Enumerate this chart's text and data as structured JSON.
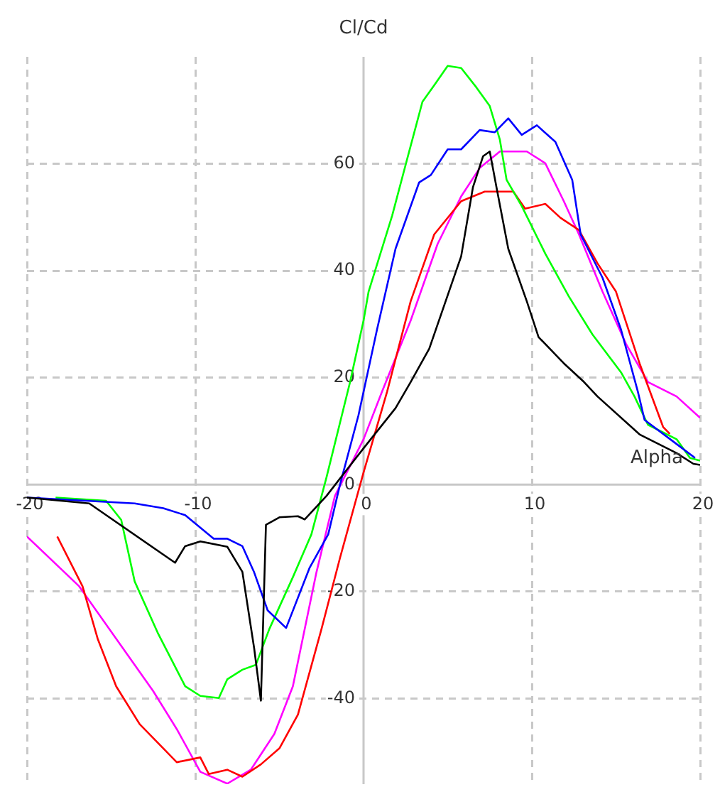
{
  "chart_data": {
    "type": "line",
    "xlabel": "Alpha",
    "ylabel": "Cl/Cd",
    "xlim": [
      -20,
      20
    ],
    "ylim": [
      -56,
      80
    ],
    "xticks": [
      -20,
      -10,
      0,
      10,
      20
    ],
    "yticks": [
      -40,
      -20,
      0,
      20,
      40,
      60
    ],
    "grid": true,
    "legend": false,
    "marker": "none",
    "line_style": "solid",
    "series": [
      {
        "color": "#000000",
        "x": [
          -20,
          -16.3,
          -11.2,
          -10.6,
          -9.7,
          -8.1,
          -7.2,
          -6.5,
          -6.1,
          -5.8,
          -5,
          -3.9,
          -3.5,
          -2.2,
          0,
          1.9,
          2.8,
          3.9,
          5.8,
          6.5,
          7.1,
          7.5,
          7.9,
          8.6,
          9.7,
          10.4,
          11.9,
          13.1,
          13.9,
          16.4,
          18.6,
          19.6,
          20
        ],
        "values": [
          -2.4,
          -3.5,
          -14.6,
          -11.5,
          -10.6,
          -11.6,
          -16.3,
          -30.6,
          -40.4,
          -7.5,
          -6.1,
          -5.9,
          -6.5,
          -2.1,
          6.8,
          14.3,
          19.2,
          25.4,
          42.7,
          55.6,
          61.4,
          62.3,
          55.6,
          44.1,
          34.3,
          27.6,
          22.7,
          19.2,
          16.5,
          9.4,
          5.9,
          3.9,
          3.7
        ]
      },
      {
        "color": "#0000ff",
        "x": [
          -20,
          -13.6,
          -11.9,
          -10.6,
          -8.9,
          -8.1,
          -7.2,
          -6.5,
          -5.7,
          -4.6,
          -3.2,
          -2.1,
          -1.4,
          -0.3,
          0.8,
          1.9,
          3.3,
          4,
          5,
          5.8,
          6.9,
          7.8,
          8.6,
          9.4,
          10.3,
          11.4,
          12.4,
          12.9,
          14.2,
          15.3,
          16.3,
          16.7,
          18.6,
          19.7
        ],
        "values": [
          -2.4,
          -3.5,
          -4.4,
          -5.7,
          -10.1,
          -10.1,
          -11.5,
          -16.4,
          -23.5,
          -26.8,
          -15.5,
          -9.3,
          0,
          13,
          29,
          44.1,
          56.5,
          57.9,
          62.7,
          62.7,
          66.3,
          65.9,
          68.5,
          65.4,
          67.2,
          64.1,
          57,
          46.8,
          38.7,
          29,
          17.4,
          12.1,
          7.6,
          5
        ]
      },
      {
        "color": "#00ff00",
        "x": [
          -18.3,
          -15.3,
          -14.4,
          -13.6,
          -12.2,
          -10.6,
          -9.7,
          -8.6,
          -8.1,
          -7.2,
          -6.4,
          -5.6,
          -4.2,
          -3.1,
          -2.2,
          -0.8,
          0,
          0.3,
          1.7,
          2.6,
          3.5,
          4.2,
          5,
          5.8,
          6.7,
          7.5,
          8.1,
          8.5,
          9.4,
          10.8,
          12.2,
          13.6,
          15.3,
          16.1,
          16.9,
          18.6,
          19.4,
          20
        ],
        "values": [
          -2.4,
          -3,
          -6.6,
          -18.1,
          -27.9,
          -37.7,
          -39.5,
          -39.9,
          -36.4,
          -34.6,
          -33.7,
          -27,
          -17.3,
          -9.3,
          1.4,
          19.2,
          30.7,
          36.1,
          50.3,
          61,
          71.6,
          74.7,
          78.3,
          77.9,
          74.3,
          70.8,
          64.5,
          57,
          52.1,
          43.2,
          35.2,
          28.1,
          21,
          16.5,
          11.2,
          8.5,
          5,
          4.5
        ]
      },
      {
        "color": "#ff0000",
        "x": [
          -18.2,
          -16.7,
          -15.8,
          -14.7,
          -13.3,
          -11.9,
          -11.1,
          -9.7,
          -9.2,
          -8.1,
          -7.2,
          -6.1,
          -5,
          -3.9,
          -2.5,
          -1.4,
          0,
          1.4,
          2.8,
          4.2,
          5.8,
          7.2,
          8.9,
          9.6,
          10.8,
          11.7,
          12.8,
          13.9,
          15,
          16.4,
          17.8,
          18.2
        ],
        "values": [
          -9.7,
          -19,
          -28.8,
          -37.7,
          -44.8,
          -49.3,
          -51.9,
          -51,
          -54.1,
          -53.3,
          -54.6,
          -52.3,
          -49.3,
          -43,
          -27,
          -13.7,
          2.3,
          17.4,
          34.3,
          46.8,
          53,
          54.8,
          54.8,
          51.6,
          52.5,
          49.9,
          47.6,
          41.4,
          36.1,
          22.7,
          10.8,
          9.5
        ]
      },
      {
        "color": "#ff00ff",
        "x": [
          -20,
          -16.9,
          -14.7,
          -12.5,
          -11.1,
          -9.7,
          -8.1,
          -6.7,
          -5.3,
          -4.2,
          -2.8,
          -1.7,
          0,
          1.1,
          2.8,
          4.4,
          5.8,
          6.9,
          8.1,
          9.7,
          10.8,
          11.9,
          12.8,
          14.2,
          15.6,
          16.9,
          18.6,
          20
        ],
        "values": [
          -9.7,
          -19,
          -28.8,
          -38.6,
          -45.7,
          -53.7,
          -55.9,
          -53.3,
          -46.6,
          -37.7,
          -16.4,
          -2.1,
          8.5,
          17.4,
          30.7,
          45,
          53.9,
          59.2,
          62.3,
          62.3,
          60.1,
          53,
          46.8,
          36.1,
          26.3,
          19.2,
          16.5,
          12.5
        ]
      }
    ]
  }
}
